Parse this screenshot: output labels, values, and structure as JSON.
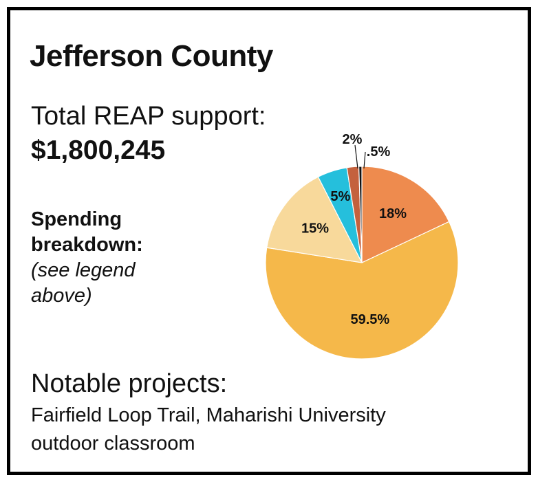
{
  "header": {
    "title": "Jefferson County"
  },
  "total": {
    "label": "Total REAP support:",
    "value": "$1,800,245"
  },
  "spending": {
    "label": "Spending breakdown:",
    "note": "(see legend above)"
  },
  "notable": {
    "label": "Notable projects:",
    "value": "Fairfield Loop Trail, Maharishi University outdoor classroom"
  },
  "chart_data": {
    "type": "pie",
    "slices": [
      {
        "label": "18%",
        "value": 18,
        "color": "#ee8b4e"
      },
      {
        "label": "59.5%",
        "value": 59.5,
        "color": "#f5b84a"
      },
      {
        "label": "15%",
        "value": 15,
        "color": "#f8d99b"
      },
      {
        "label": "5%",
        "value": 5,
        "color": "#25bfdc"
      },
      {
        "label": "2%",
        "value": 2,
        "color": "#c4613d"
      },
      {
        "label": ".5%",
        "value": 0.5,
        "color": "#111111"
      }
    ]
  }
}
